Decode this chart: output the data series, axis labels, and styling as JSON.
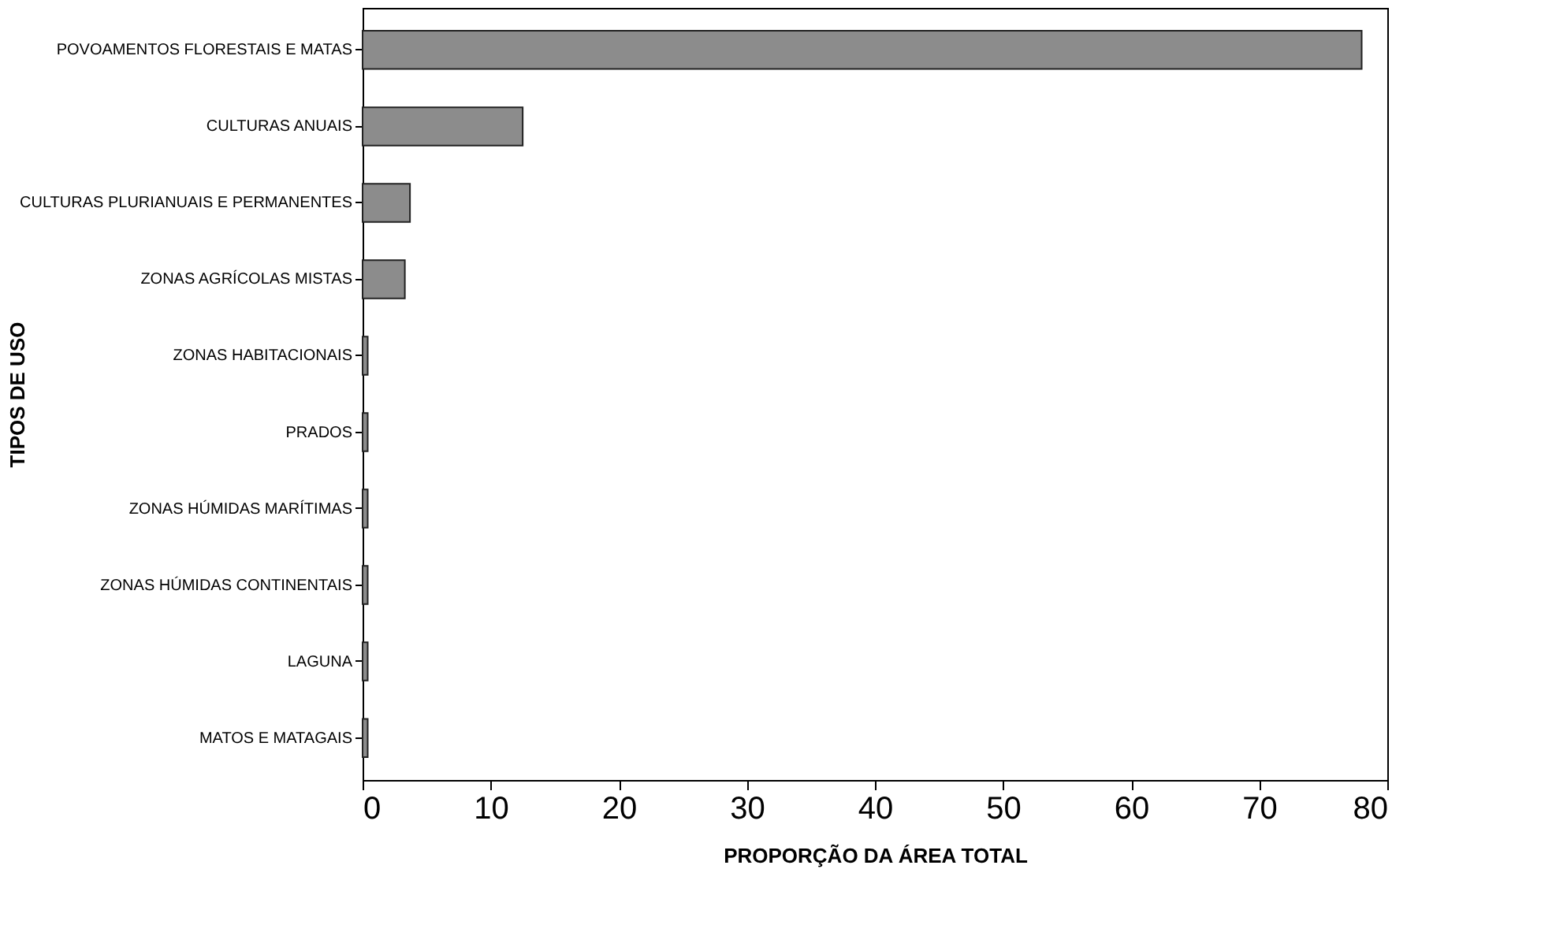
{
  "chart_data": {
    "type": "bar",
    "orientation": "horizontal",
    "xlabel": "PROPORÇÃO DA ÁREA TOTAL",
    "ylabel": "TIPOS DE USO",
    "categories": [
      "POVOAMENTOS FLORESTAIS E MATAS",
      "CULTURAS ANUAIS",
      "CULTURAS PLURIANUAIS E PERMANENTES",
      "ZONAS AGRÍCOLAS MISTAS",
      "ZONAS HABITACIONAIS",
      "PRADOS",
      "ZONAS HÚMIDAS MARÍTIMAS",
      "ZONAS HÚMIDAS CONTINENTAIS",
      "LAGUNA",
      "MATOS E MATAGAIS"
    ],
    "values": [
      78,
      12.5,
      3.7,
      3.3,
      0.4,
      0.4,
      0.4,
      0.4,
      0.4,
      0.4
    ],
    "color": "#8c8c8c",
    "xlim": [
      0,
      80
    ],
    "xticks": [
      0,
      10,
      20,
      30,
      40,
      50,
      60,
      70,
      80
    ],
    "grid": false
  }
}
